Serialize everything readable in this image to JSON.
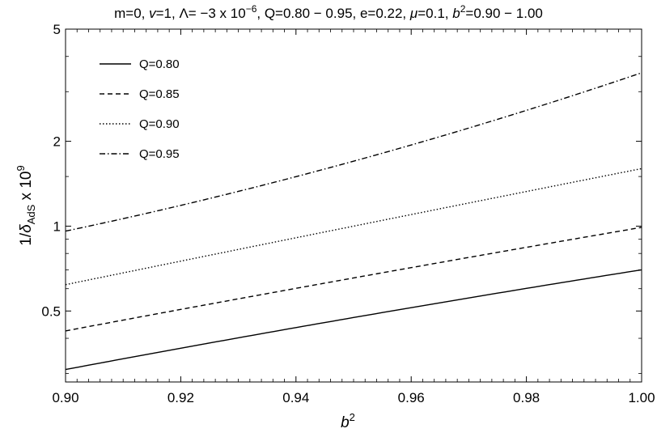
{
  "chart_data": {
    "type": "line",
    "title": {
      "pre": "m=0, ",
      "v": "v",
      "mid1": "=1, Λ= −3 x 10",
      "exp6": "−6",
      "mid2": ", Q=0.80 − 0.95, e=0.22, ",
      "mu": "μ",
      "mid3": "=0.1, ",
      "b": "b",
      "sq": "2",
      "post": "=0.90 − 1.00"
    },
    "xlabel": {
      "base": "b",
      "sup": "2"
    },
    "ylabel": {
      "pre": "1/",
      "delta": "δ",
      "sub": "AdS",
      "mid": " x 10",
      "sup": "9"
    },
    "y_scale": "log",
    "xlim": [
      0.9,
      1.0
    ],
    "ylim": [
      0.28,
      5.0
    ],
    "x_ticks": [
      "0.90",
      "0.92",
      "0.94",
      "0.96",
      "0.98",
      "1.00"
    ],
    "y_ticks": [
      "0.5",
      "1",
      "2",
      "5"
    ],
    "legend_position": "top-left",
    "series": [
      {
        "name": "Q=0.80",
        "dash": "solid",
        "points": [
          [
            0.9,
            0.31
          ],
          [
            0.95,
            0.474
          ],
          [
            1.0,
            0.7
          ]
        ]
      },
      {
        "name": "Q=0.85",
        "dash": "dashed",
        "points": [
          [
            0.9,
            0.425
          ],
          [
            0.95,
            0.655
          ],
          [
            1.0,
            0.99
          ]
        ]
      },
      {
        "name": "Q=0.90",
        "dash": "dotted",
        "points": [
          [
            0.9,
            0.62
          ],
          [
            0.95,
            1.0
          ],
          [
            1.0,
            1.6
          ]
        ]
      },
      {
        "name": "Q=0.95",
        "dash": "dash-dot",
        "points": [
          [
            0.9,
            0.96
          ],
          [
            0.95,
            1.7
          ],
          [
            1.0,
            3.5
          ]
        ]
      }
    ]
  }
}
